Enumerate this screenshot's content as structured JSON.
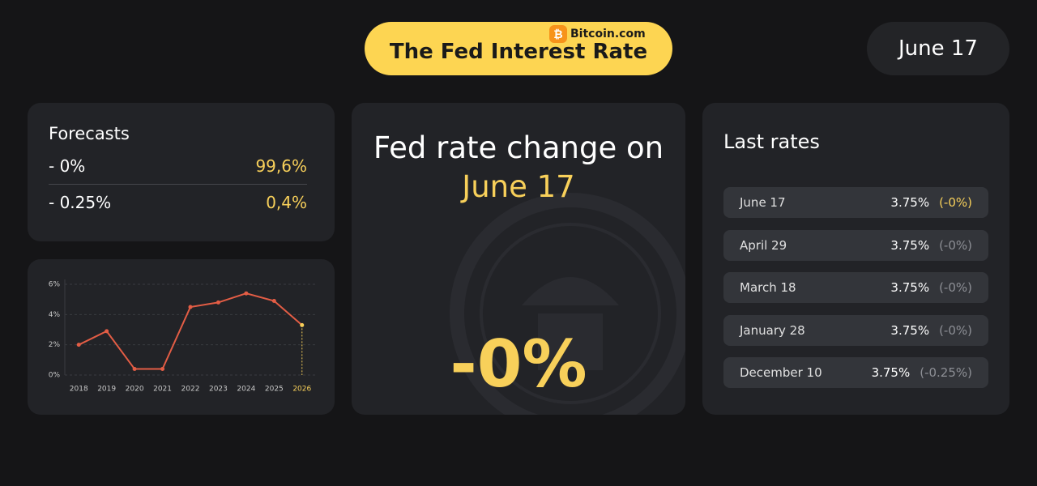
{
  "header": {
    "title": "The Fed Interest Rate",
    "brand": "Bitcoin.com",
    "date": "June 17"
  },
  "forecasts": {
    "title": "Forecasts",
    "rows": [
      {
        "label": "- 0%",
        "value": "99,6%"
      },
      {
        "label": "- 0.25%",
        "value": "0,4%"
      }
    ]
  },
  "center": {
    "heading": "Fed rate change on",
    "date": "June 17",
    "change": "-0%"
  },
  "last_rates": {
    "title": "Last rates",
    "rows": [
      {
        "date": "June 17",
        "rate": "3.75%",
        "change": "(-0%)"
      },
      {
        "date": "April 29",
        "rate": "3.75%",
        "change": "(-0%)"
      },
      {
        "date": "March 18",
        "rate": "3.75%",
        "change": "(-0%)"
      },
      {
        "date": "January 28",
        "rate": "3.75%",
        "change": "(-0%)"
      },
      {
        "date": "December 10",
        "rate": "3.75%",
        "change": "(-0.25%)"
      }
    ]
  },
  "chart_data": {
    "type": "line",
    "categories": [
      "2018",
      "2019",
      "2020",
      "2021",
      "2022",
      "2023",
      "2024",
      "2025",
      "2026"
    ],
    "values": [
      2.0,
      2.9,
      0.4,
      0.4,
      4.5,
      4.8,
      5.4,
      4.9,
      3.3
    ],
    "color": "#e35d45",
    "ylim": [
      0,
      6
    ],
    "yticks": [
      {
        "value": 0,
        "label": "0%"
      },
      {
        "value": 2,
        "label": "2%"
      },
      {
        "value": 4,
        "label": "4%"
      },
      {
        "value": 6,
        "label": "6%"
      }
    ],
    "grid": true
  }
}
